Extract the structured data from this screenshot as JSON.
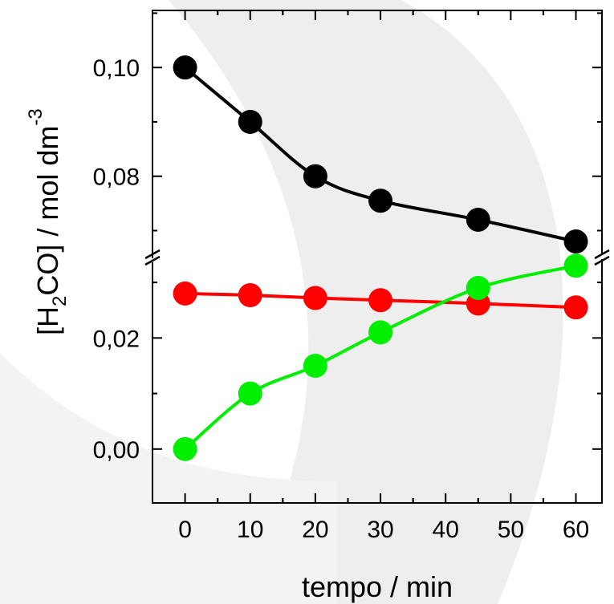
{
  "chart_data": {
    "type": "line",
    "xlabel": "tempo / min",
    "ylabel": {
      "before_sub": "[H",
      "sub": "2",
      "after_sub": "CO] / mol dm",
      "sup": "-3"
    },
    "x": [
      0,
      10,
      20,
      30,
      45,
      60
    ],
    "xlim": [
      -5,
      64
    ],
    "xticks": [
      "0",
      "10",
      "20",
      "30",
      "40",
      "50",
      "60"
    ],
    "y_axis_break": true,
    "upper_panel": {
      "ylim": [
        0.0655,
        0.1105
      ],
      "yticks": [
        {
          "value": 0.1,
          "label": "0,10"
        },
        {
          "value": 0.08,
          "label": "0,08"
        }
      ]
    },
    "lower_panel": {
      "ylim": [
        -0.0097,
        0.0342
      ],
      "yticks": [
        {
          "value": 0.02,
          "label": "0,02"
        },
        {
          "value": 0.0,
          "label": "0,00"
        }
      ]
    },
    "series": [
      {
        "panel": "upper",
        "color": "#000000",
        "values": [
          0.1,
          0.09,
          0.08,
          0.0755,
          0.072,
          0.068
        ]
      },
      {
        "panel": "lower",
        "color": "#ff0000",
        "values": [
          0.028,
          0.0277,
          0.0272,
          0.0268,
          0.0262,
          0.0255
        ]
      },
      {
        "panel": "lower",
        "color": "#00ee00",
        "values": [
          0.0,
          0.01,
          0.015,
          0.021,
          0.029,
          0.033
        ]
      }
    ],
    "markers": true,
    "grid": false
  }
}
